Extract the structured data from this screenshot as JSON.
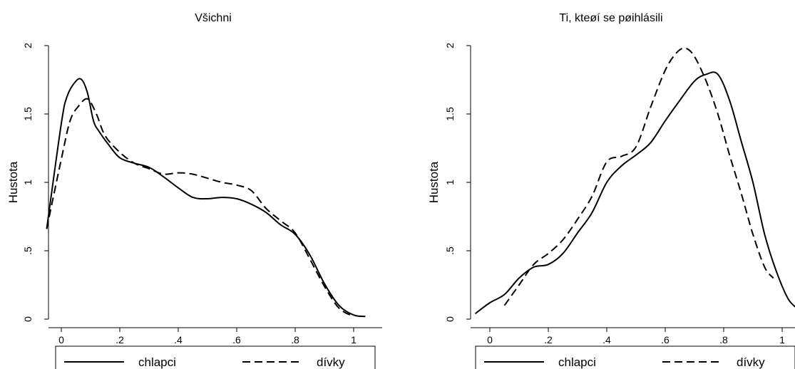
{
  "chart_data": [
    {
      "type": "line",
      "title": "Všichni",
      "xlabel": "",
      "ylabel": "Hustota",
      "xlim": [
        -0.05,
        1.05
      ],
      "ylim": [
        0,
        2
      ],
      "xticks": [
        0,
        0.2,
        0.4,
        0.6,
        0.8,
        1
      ],
      "xtick_labels": [
        "0",
        ".2",
        ".4",
        ".6",
        ".8",
        "1"
      ],
      "yticks": [
        0,
        0.5,
        1,
        1.5,
        2
      ],
      "ytick_labels": [
        "0",
        ".5",
        "1",
        "1.5",
        "2"
      ],
      "legend_position": "bottom",
      "series": [
        {
          "name": "chlapci",
          "style": "solid",
          "x": [
            -0.05,
            0.0,
            0.02,
            0.05,
            0.07,
            0.09,
            0.11,
            0.13,
            0.16,
            0.2,
            0.25,
            0.3,
            0.35,
            0.4,
            0.45,
            0.5,
            0.55,
            0.6,
            0.65,
            0.7,
            0.75,
            0.8,
            0.85,
            0.9,
            0.95,
            1.0,
            1.04
          ],
          "y": [
            0.66,
            1.43,
            1.63,
            1.74,
            1.75,
            1.65,
            1.45,
            1.37,
            1.28,
            1.18,
            1.14,
            1.11,
            1.04,
            0.96,
            0.89,
            0.88,
            0.89,
            0.88,
            0.84,
            0.78,
            0.69,
            0.62,
            0.47,
            0.26,
            0.1,
            0.03,
            0.02
          ]
        },
        {
          "name": "dívky",
          "style": "dashed",
          "x": [
            -0.05,
            0.0,
            0.03,
            0.06,
            0.09,
            0.12,
            0.15,
            0.2,
            0.25,
            0.3,
            0.35,
            0.4,
            0.45,
            0.5,
            0.55,
            0.6,
            0.65,
            0.7,
            0.75,
            0.8,
            0.85,
            0.9,
            0.95,
            1.0
          ],
          "y": [
            0.66,
            1.17,
            1.45,
            1.56,
            1.61,
            1.5,
            1.34,
            1.22,
            1.14,
            1.1,
            1.06,
            1.07,
            1.06,
            1.03,
            1.0,
            0.98,
            0.94,
            0.81,
            0.72,
            0.63,
            0.44,
            0.24,
            0.08,
            0.02
          ]
        }
      ]
    },
    {
      "type": "line",
      "title": "Ti, kteøí se pøihlásili",
      "xlabel": "",
      "ylabel": "Hustota",
      "xlim": [
        -0.05,
        1.05
      ],
      "ylim": [
        0,
        2
      ],
      "xticks": [
        0,
        0.2,
        0.4,
        0.6,
        0.8,
        1
      ],
      "xtick_labels": [
        "0",
        ".2",
        ".4",
        ".6",
        ".8",
        "1"
      ],
      "yticks": [
        0,
        0.5,
        1,
        1.5,
        2
      ],
      "ytick_labels": [
        "0",
        ".5",
        "1",
        "1.5",
        "2"
      ],
      "legend_position": "bottom",
      "series": [
        {
          "name": "chlapci",
          "style": "solid",
          "x": [
            -0.05,
            0.0,
            0.05,
            0.1,
            0.15,
            0.2,
            0.25,
            0.3,
            0.35,
            0.4,
            0.45,
            0.5,
            0.55,
            0.6,
            0.65,
            0.7,
            0.74,
            0.78,
            0.82,
            0.86,
            0.9,
            0.94,
            0.98,
            1.02,
            1.05
          ],
          "y": [
            0.04,
            0.12,
            0.18,
            0.3,
            0.38,
            0.4,
            0.48,
            0.63,
            0.78,
            1.0,
            1.12,
            1.2,
            1.29,
            1.45,
            1.6,
            1.74,
            1.79,
            1.79,
            1.6,
            1.3,
            1.0,
            0.62,
            0.35,
            0.15,
            0.08
          ]
        },
        {
          "name": "dívky",
          "style": "dashed",
          "x": [
            0.05,
            0.1,
            0.15,
            0.2,
            0.25,
            0.3,
            0.35,
            0.4,
            0.45,
            0.5,
            0.55,
            0.6,
            0.64,
            0.67,
            0.7,
            0.74,
            0.78,
            0.82,
            0.86,
            0.9,
            0.94,
            0.97
          ],
          "y": [
            0.1,
            0.25,
            0.4,
            0.48,
            0.58,
            0.73,
            0.9,
            1.15,
            1.19,
            1.26,
            1.55,
            1.82,
            1.95,
            1.98,
            1.92,
            1.74,
            1.5,
            1.2,
            0.92,
            0.62,
            0.38,
            0.3
          ]
        }
      ]
    }
  ]
}
